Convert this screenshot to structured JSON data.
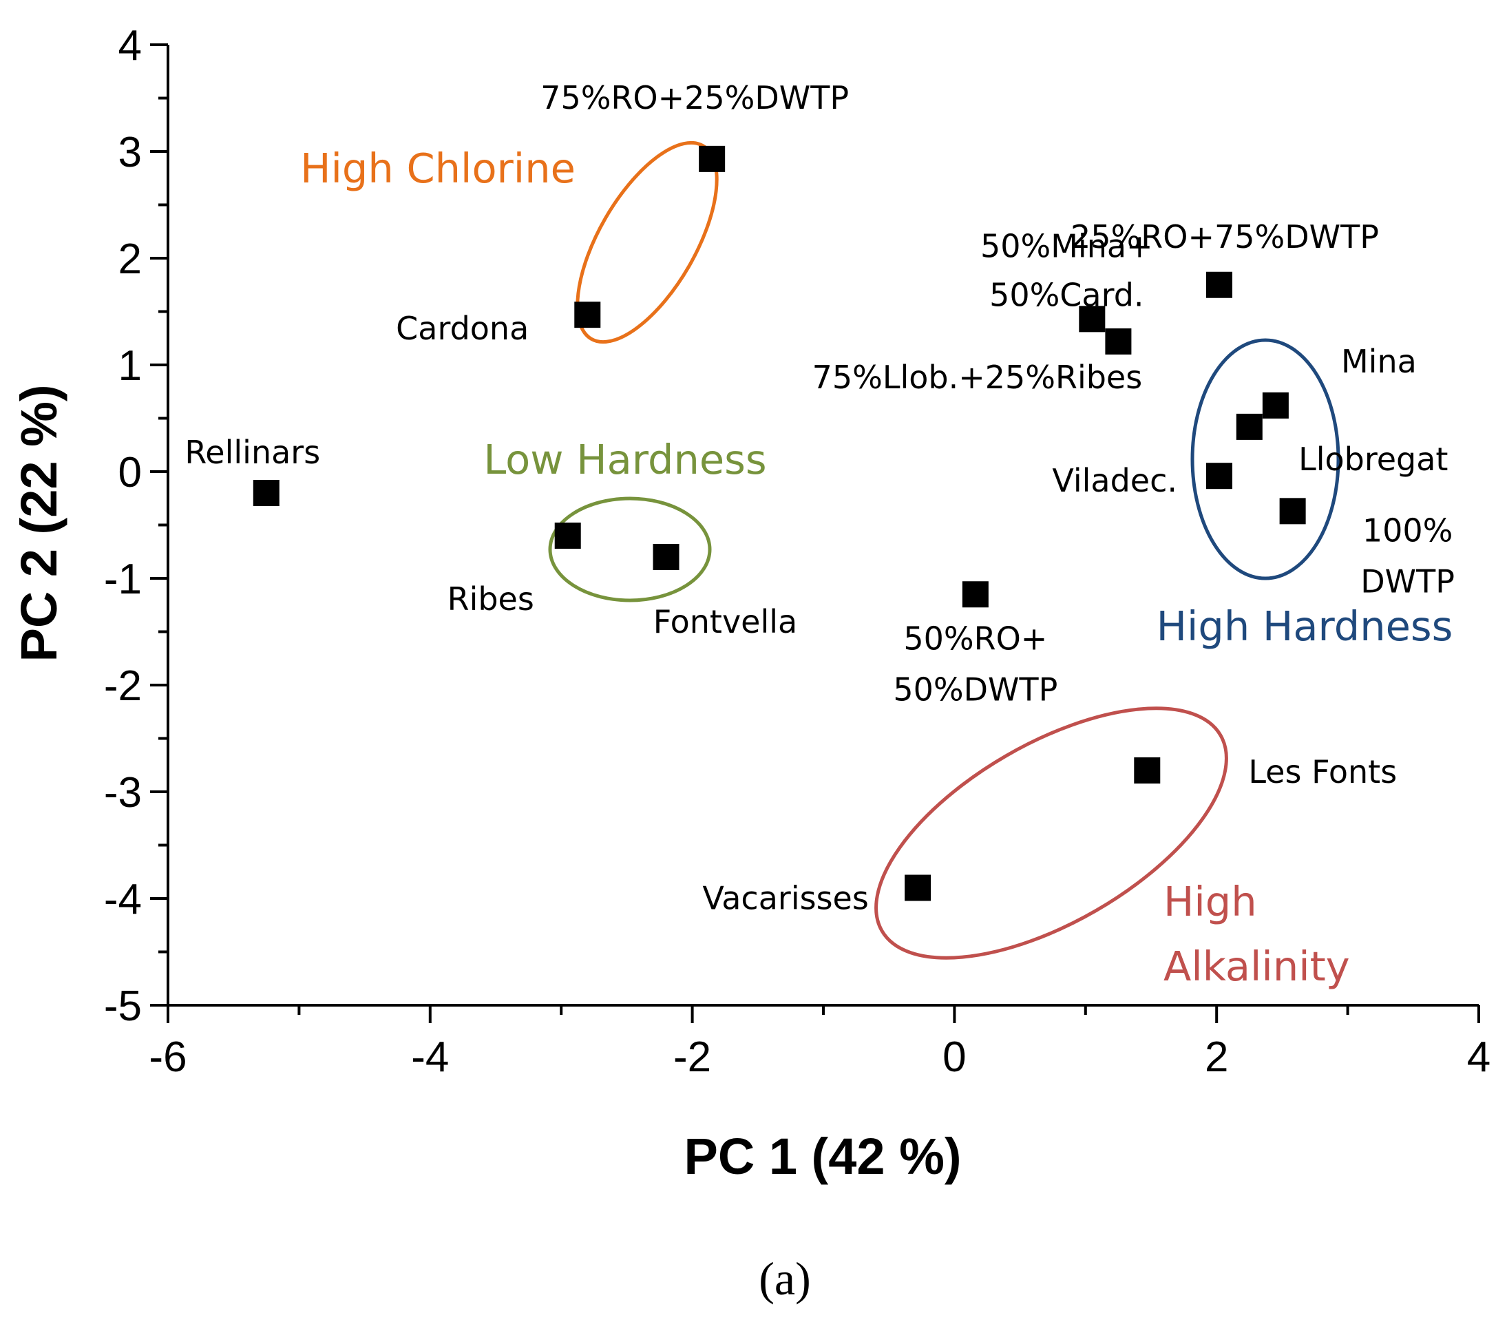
{
  "chart_data": {
    "type": "scatter",
    "title": "",
    "xlabel": "PC 1 (42 %)",
    "ylabel": "PC 2 (22 %)",
    "xlim": [
      -6,
      4
    ],
    "ylim": [
      -5,
      4
    ],
    "xticks": [
      "-6",
      "-4",
      "-2",
      "0",
      "2",
      "4"
    ],
    "yticks": [
      "4",
      "3",
      "2",
      "1",
      "0",
      "-1",
      "-2",
      "-3",
      "-4",
      "-5"
    ],
    "points": [
      {
        "name": "75%RO+25%DWTP",
        "label_lines": [
          "75%RO+25%DWTP"
        ],
        "x": -1.85,
        "y": 2.93
      },
      {
        "name": "Cardona",
        "label_lines": [
          "Cardona"
        ],
        "x": -2.8,
        "y": 1.47
      },
      {
        "name": "Rellinars",
        "label_lines": [
          "Rellinars"
        ],
        "x": -5.25,
        "y": -0.2
      },
      {
        "name": "Ribes",
        "label_lines": [
          "Ribes"
        ],
        "x": -2.95,
        "y": -0.6
      },
      {
        "name": "Fontvella",
        "label_lines": [
          "Fontvella"
        ],
        "x": -2.2,
        "y": -0.8
      },
      {
        "name": "50%Mina+50%Card.",
        "label_lines": [
          "50%Mina+",
          "50%Card."
        ],
        "x": 1.05,
        "y": 1.43
      },
      {
        "name": "75%Llob.+25%Ribes",
        "label_lines": [
          "75%Llob.+25%Ribes"
        ],
        "x": 1.25,
        "y": 1.22
      },
      {
        "name": "25%RO+75%DWTP",
        "label_lines": [
          "25%RO+75%DWTP"
        ],
        "x": 2.02,
        "y": 1.75
      },
      {
        "name": "Mina",
        "label_lines": [
          "Mina"
        ],
        "x": 2.45,
        "y": 0.62
      },
      {
        "name": "Llobregat",
        "label_lines": [
          "Llobregat"
        ],
        "x": 2.25,
        "y": 0.42
      },
      {
        "name": "Viladec.",
        "label_lines": [
          "Viladec."
        ],
        "x": 2.02,
        "y": -0.04
      },
      {
        "name": "100% DWTP",
        "label_lines": [
          "100%",
          "DWTP"
        ],
        "x": 2.58,
        "y": -0.37
      },
      {
        "name": "50%RO+50%DWTP",
        "label_lines": [
          "50%RO+",
          "50%DWTP"
        ],
        "x": 0.16,
        "y": -1.15
      },
      {
        "name": "Les Fonts",
        "label_lines": [
          "Les Fonts"
        ],
        "x": 1.47,
        "y": -2.8
      },
      {
        "name": "Vacarisses",
        "label_lines": [
          "Vacarisses"
        ],
        "x": -0.28,
        "y": -3.9
      }
    ],
    "groups": [
      {
        "name": "High Chlorine",
        "label_lines": [
          "High Chlorine"
        ],
        "color": "#E8711A",
        "members": [
          "75%RO+25%DWTP",
          "Cardona"
        ]
      },
      {
        "name": "Low Hardness",
        "label_lines": [
          "Low Hardness"
        ],
        "color": "#77933C",
        "members": [
          "Ribes",
          "Fontvella"
        ]
      },
      {
        "name": "High Hardness",
        "label_lines": [
          "High Hardness"
        ],
        "color": "#1F497D",
        "members": [
          "Mina",
          "Llobregat",
          "Viladec.",
          "100% DWTP"
        ]
      },
      {
        "name": "High Alkalinity",
        "label_lines": [
          "High",
          "Alkalinity"
        ],
        "color": "#C0504D",
        "members": [
          "Les Fonts",
          "Vacarisses"
        ]
      }
    ]
  },
  "caption": "(a)"
}
